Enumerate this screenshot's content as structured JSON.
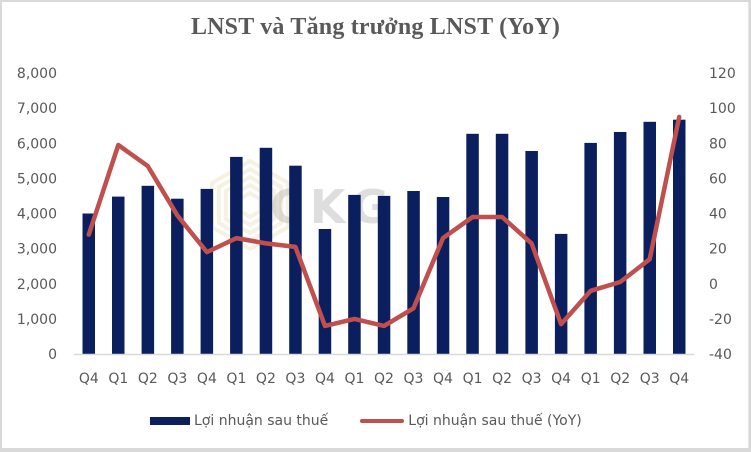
{
  "chart_data": {
    "type": "bar+line",
    "title": "LNST và Tăng trưởng LNST (YoY)",
    "categories": [
      "Q4",
      "Q1",
      "Q2",
      "Q3",
      "Q4",
      "Q1",
      "Q2",
      "Q3",
      "Q4",
      "Q1",
      "Q2",
      "Q3",
      "Q4",
      "Q1",
      "Q2",
      "Q3",
      "Q4",
      "Q1",
      "Q2",
      "Q3",
      "Q4"
    ],
    "series": [
      {
        "name": "Lợi nhuận sau thuế",
        "type": "bar",
        "axis": "left",
        "color": "#0b1f5e",
        "values": [
          4000,
          4480,
          4790,
          4420,
          4700,
          5610,
          5870,
          5360,
          3560,
          4530,
          4500,
          4640,
          4470,
          6270,
          6270,
          5780,
          3420,
          6010,
          6320,
          6610,
          6670
        ]
      },
      {
        "name": "Lợi nhuận sau thuế (YoY)",
        "type": "line",
        "axis": "right",
        "color": "#c0504d",
        "values": [
          28,
          79,
          67,
          39,
          18,
          26,
          23,
          21,
          -24,
          -20,
          -24,
          -14,
          26,
          38,
          38,
          23,
          -23,
          -4,
          1,
          14,
          95
        ]
      }
    ],
    "left_axis": {
      "min": 0,
      "max": 8000,
      "ticks": [
        "0",
        "1,000",
        "2,000",
        "3,000",
        "4,000",
        "5,000",
        "6,000",
        "7,000",
        "8,000"
      ]
    },
    "right_axis": {
      "min": -40,
      "max": 120,
      "ticks": [
        "-40",
        "-20",
        "0",
        "20",
        "40",
        "60",
        "80",
        "100",
        "120"
      ]
    },
    "xlabel": "",
    "ylabel": "",
    "grid": false,
    "legend_position": "bottom"
  },
  "watermark": "CKG",
  "legend": {
    "bar_label": "Lợi nhuận sau thuế",
    "line_label": "Lợi nhuận sau thuế (YoY)"
  }
}
